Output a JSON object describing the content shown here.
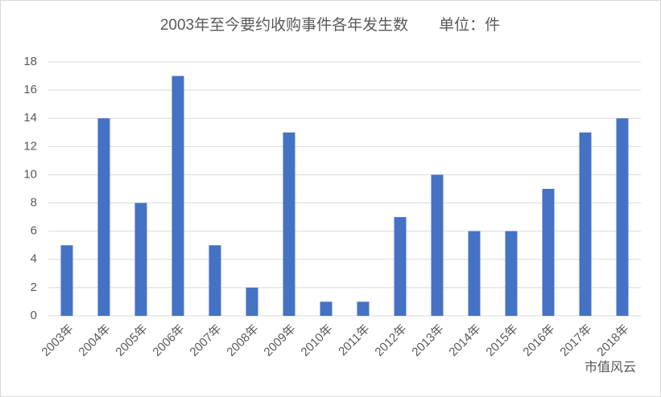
{
  "chart_data": {
    "type": "bar",
    "title": "2003年至今要约收购事件各年发生数　　单位：件",
    "categories": [
      "2003年",
      "2004年",
      "2005年",
      "2006年",
      "2007年",
      "2008年",
      "2009年",
      "2010年",
      "2011年",
      "2012年",
      "2013年",
      "2014年",
      "2015年",
      "2016年",
      "2017年",
      "2018年"
    ],
    "values": [
      5,
      14,
      8,
      17,
      5,
      2,
      13,
      1,
      1,
      7,
      10,
      6,
      6,
      9,
      13,
      14
    ],
    "color": "#4472c4",
    "ylim": [
      0,
      18
    ],
    "yticks": [
      0,
      2,
      4,
      6,
      8,
      10,
      12,
      14,
      16,
      18
    ],
    "grid": true,
    "watermark": "市值风云"
  }
}
